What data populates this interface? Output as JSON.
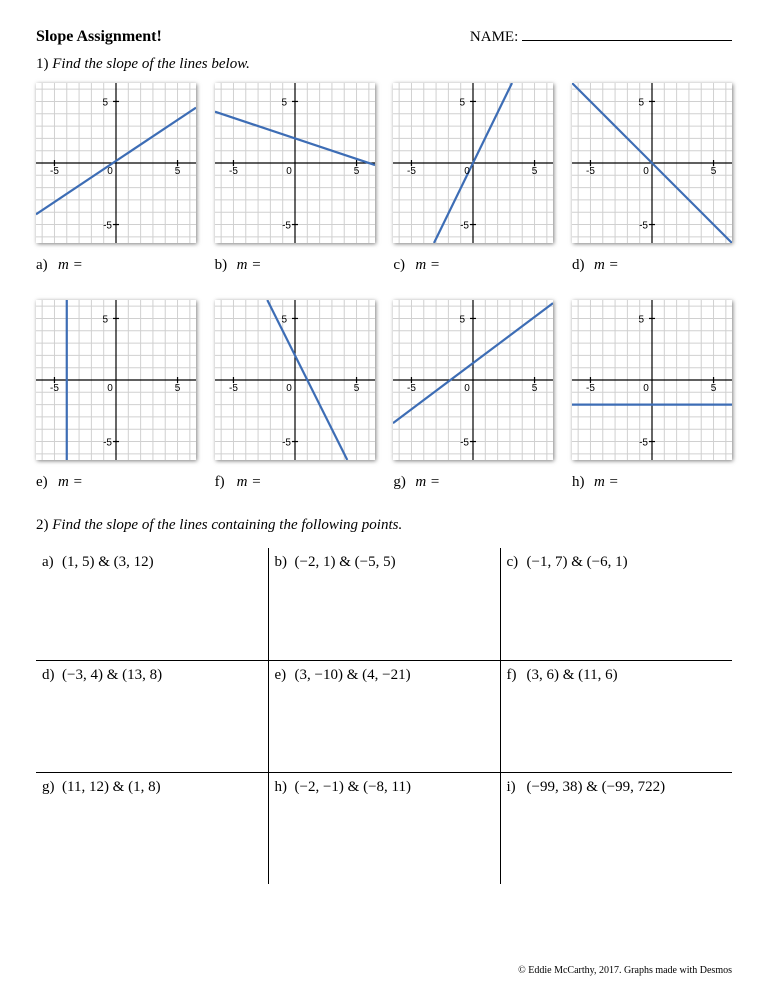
{
  "header": {
    "title": "Slope Assignment!",
    "name_label": "NAME:"
  },
  "q1": {
    "number": "1)",
    "prompt": "Find the slope of the lines below.",
    "graph": {
      "xmin": -6.5,
      "xmax": 6.5,
      "ymin": -6.5,
      "ymax": 6.5,
      "axis_labels": {
        "pos": "5",
        "neg": "-5",
        "zero": "0"
      },
      "grid_color": "#d0d0d0",
      "axis_color": "#000000",
      "line_color": "#3d6db5",
      "line_width": 2.2,
      "axis_fontsize": 10
    },
    "graphs": [
      {
        "letter": "a)",
        "p1": [
          -6.5,
          -4.17
        ],
        "p2": [
          6.5,
          4.5
        ]
      },
      {
        "letter": "b)",
        "p1": [
          -6.5,
          4.17
        ],
        "p2": [
          6.5,
          -0.17
        ]
      },
      {
        "letter": "c)",
        "p1": [
          -3.17,
          -6.5
        ],
        "p2": [
          3.17,
          6.5
        ]
      },
      {
        "letter": "d)",
        "p1": [
          -6.5,
          6.5
        ],
        "p2": [
          6.5,
          -6.5
        ]
      },
      {
        "letter": "e)",
        "p1": [
          -4,
          -6.5
        ],
        "p2": [
          -4,
          6.5
        ]
      },
      {
        "letter": "f)",
        "p1": [
          -2.25,
          6.5
        ],
        "p2": [
          4.25,
          -6.5
        ]
      },
      {
        "letter": "g)",
        "p1": [
          -6.5,
          -3.5
        ],
        "p2": [
          6.5,
          6.25
        ]
      },
      {
        "letter": "h)",
        "p1": [
          -6.5,
          -2
        ],
        "p2": [
          6.5,
          -2
        ]
      }
    ],
    "answer_label": "m ="
  },
  "q2": {
    "number": "2)",
    "prompt": "Find the slope of the lines containing the following points.",
    "items": [
      {
        "letter": "a)",
        "text": "(1, 5) & (3, 12)"
      },
      {
        "letter": "b)",
        "text": "(−2, 1) & (−5, 5)"
      },
      {
        "letter": "c)",
        "text": "(−1, 7) & (−6, 1)"
      },
      {
        "letter": "d)",
        "text": "(−3, 4) & (13, 8)"
      },
      {
        "letter": "e)",
        "text": "(3, −10) & (4, −21)"
      },
      {
        "letter": "f)",
        "text": "(3, 6) & (11, 6)"
      },
      {
        "letter": "g)",
        "text": "(11, 12) & (1, 8)"
      },
      {
        "letter": "h)",
        "text": "(−2, −1) & (−8, 11)"
      },
      {
        "letter": "i)",
        "text": "(−99, 38) & (−99, 722)"
      }
    ]
  },
  "footer": "© Eddie McCarthy, 2017. Graphs made with Desmos"
}
